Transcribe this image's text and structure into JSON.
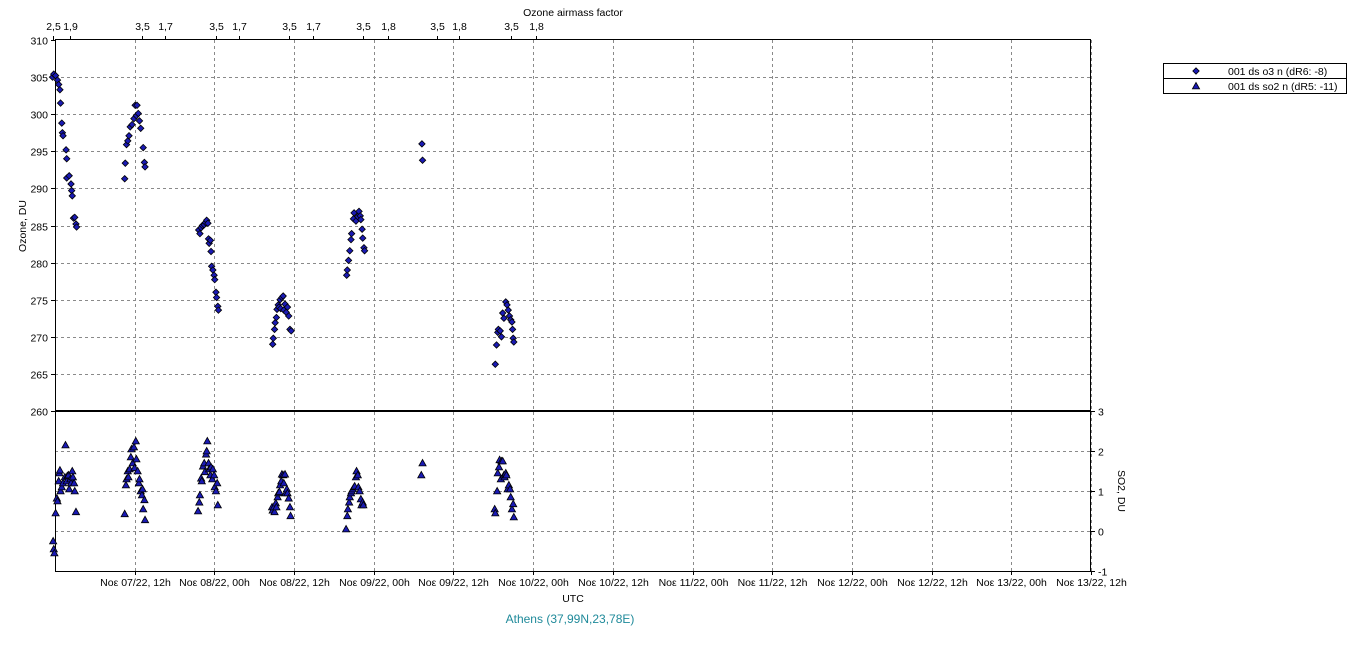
{
  "chart_data": {
    "type": "scatter",
    "location": "Athens (37,99N,23,78E)",
    "x_axis": {
      "label": "UTC",
      "min_hours": 0,
      "max_hours": 168,
      "tick_labels": [
        "Νοε 07/22, 12h",
        "Νοε 08/22, 00h",
        "Νοε 08/22, 12h",
        "Νοε 09/22, 00h",
        "Νοε 09/22, 12h",
        "Νοε 10/22, 00h",
        "Νοε 10/22, 12h",
        "Νοε 11/22, 00h",
        "Νοε 11/22, 12h",
        "Νοε 12/22, 00h",
        "Νοε 12/22, 12h",
        "Νοε 13/22, 00h",
        "Νοε 13/22, 12h"
      ]
    },
    "top_axis": {
      "label": "Ozone airmass factor",
      "tick_labels": [
        {
          "t": -0.3,
          "label": "2,5"
        },
        {
          "t": 2.4,
          "label": "1,9"
        },
        {
          "t": 14.1,
          "label": "3,5"
        },
        {
          "t": 17.9,
          "label": "1,7"
        },
        {
          "t": 26.1,
          "label": "3,5"
        },
        {
          "t": 29.9,
          "label": "1,7"
        },
        {
          "t": 38.0,
          "label": "3,5"
        },
        {
          "t": 41.8,
          "label": "1,7"
        },
        {
          "t": 50.0,
          "label": "3,5"
        },
        {
          "t": 54.0,
          "label": "1,8"
        },
        {
          "t": 62.0,
          "label": "3,5"
        },
        {
          "t": 65.5,
          "label": "1,8"
        },
        {
          "t": 74.0,
          "label": "3,5"
        },
        {
          "t": 78.0,
          "label": "1,8"
        }
      ]
    },
    "ozone_axis": {
      "label": "Ozone, DU",
      "min": 260,
      "max": 310,
      "ticks": [
        260,
        265,
        270,
        275,
        280,
        285,
        290,
        295,
        300,
        305,
        310
      ]
    },
    "so2_axis": {
      "label": "SO2, DU",
      "min": -1,
      "max": 3,
      "ticks": [
        -1,
        0,
        1,
        2,
        3
      ]
    },
    "grid": true,
    "legend_position": "top-right, outside plot",
    "series": [
      {
        "name": "001 ds o3  n (dR6: -8)",
        "marker": "diamond",
        "color": "#1a1ab4",
        "axis": "ozone",
        "points": [
          [
            -0.4,
            305.0
          ],
          [
            -0.2,
            305.4
          ],
          [
            0.1,
            305.2
          ],
          [
            0.4,
            304.6
          ],
          [
            0.6,
            304.0
          ],
          [
            0.8,
            303.3
          ],
          [
            0.9,
            301.5
          ],
          [
            1.1,
            298.8
          ],
          [
            1.2,
            297.5
          ],
          [
            1.3,
            297.1
          ],
          [
            1.8,
            295.2
          ],
          [
            1.9,
            294.0
          ],
          [
            1.9,
            291.4
          ],
          [
            2.3,
            291.7
          ],
          [
            2.6,
            290.6
          ],
          [
            2.7,
            289.7
          ],
          [
            2.8,
            289.0
          ],
          [
            3.0,
            286.0
          ],
          [
            3.2,
            286.1
          ],
          [
            3.4,
            285.2
          ],
          [
            3.5,
            284.8
          ],
          [
            11.3,
            291.3
          ],
          [
            11.4,
            293.4
          ],
          [
            11.6,
            295.9
          ],
          [
            11.8,
            296.4
          ],
          [
            12.0,
            297.1
          ],
          [
            12.2,
            298.3
          ],
          [
            12.5,
            298.6
          ],
          [
            12.8,
            299.4
          ],
          [
            13.0,
            301.2
          ],
          [
            13.2,
            299.8
          ],
          [
            13.3,
            301.2
          ],
          [
            13.5,
            300.1
          ],
          [
            13.7,
            299.1
          ],
          [
            13.9,
            298.1
          ],
          [
            14.3,
            295.5
          ],
          [
            14.5,
            293.5
          ],
          [
            14.6,
            292.9
          ],
          [
            23.3,
            284.4
          ],
          [
            23.5,
            283.9
          ],
          [
            23.7,
            284.7
          ],
          [
            23.9,
            285.0
          ],
          [
            24.2,
            285.1
          ],
          [
            24.4,
            285.4
          ],
          [
            24.6,
            285.7
          ],
          [
            24.8,
            285.3
          ],
          [
            24.9,
            283.2
          ],
          [
            25.0,
            282.6
          ],
          [
            25.2,
            283.0
          ],
          [
            25.3,
            281.5
          ],
          [
            25.4,
            279.5
          ],
          [
            25.6,
            279.0
          ],
          [
            25.8,
            278.3
          ],
          [
            25.9,
            277.7
          ],
          [
            26.1,
            276.0
          ],
          [
            26.2,
            275.3
          ],
          [
            26.4,
            274.1
          ],
          [
            26.5,
            273.6
          ],
          [
            35.3,
            269.0
          ],
          [
            35.4,
            269.8
          ],
          [
            35.6,
            271.0
          ],
          [
            35.7,
            271.9
          ],
          [
            35.9,
            272.6
          ],
          [
            36.0,
            273.7
          ],
          [
            36.2,
            274.3
          ],
          [
            36.3,
            274.0
          ],
          [
            36.5,
            275.0
          ],
          [
            36.6,
            273.8
          ],
          [
            36.8,
            275.3
          ],
          [
            37.0,
            275.5
          ],
          [
            37.1,
            273.6
          ],
          [
            37.3,
            274.4
          ],
          [
            37.5,
            273.3
          ],
          [
            37.7,
            274.0
          ],
          [
            37.9,
            272.8
          ],
          [
            38.1,
            271.0
          ],
          [
            38.3,
            270.8
          ],
          [
            47.3,
            278.3
          ],
          [
            47.4,
            279.0
          ],
          [
            47.6,
            280.3
          ],
          [
            47.8,
            281.6
          ],
          [
            48.0,
            283.1
          ],
          [
            48.1,
            283.9
          ],
          [
            48.4,
            285.9
          ],
          [
            48.5,
            286.7
          ],
          [
            48.8,
            285.6
          ],
          [
            49.1,
            286.2
          ],
          [
            49.3,
            286.9
          ],
          [
            49.5,
            286.3
          ],
          [
            49.6,
            285.8
          ],
          [
            49.8,
            284.5
          ],
          [
            49.9,
            283.3
          ],
          [
            50.1,
            282.0
          ],
          [
            50.2,
            281.6
          ],
          [
            59.5,
            296.0
          ],
          [
            59.6,
            293.8
          ],
          [
            71.4,
            266.3
          ],
          [
            71.6,
            268.9
          ],
          [
            71.8,
            270.6
          ],
          [
            71.9,
            271.0
          ],
          [
            72.2,
            270.8
          ],
          [
            72.4,
            270.0
          ],
          [
            72.6,
            273.2
          ],
          [
            72.8,
            272.5
          ],
          [
            73.1,
            274.7
          ],
          [
            73.3,
            274.3
          ],
          [
            73.5,
            273.6
          ],
          [
            73.7,
            272.8
          ],
          [
            73.9,
            272.3
          ],
          [
            74.1,
            272.0
          ],
          [
            74.2,
            271.0
          ],
          [
            74.3,
            269.8
          ],
          [
            74.4,
            269.3
          ]
        ]
      },
      {
        "name": "001 ds so2 n (dR5: -11)",
        "marker": "triangle",
        "color": "#1a1ab4",
        "axis": "so2",
        "points": [
          [
            -0.3,
            -0.25
          ],
          [
            -0.2,
            -0.45
          ],
          [
            -0.1,
            -0.55
          ],
          [
            0.1,
            0.45
          ],
          [
            0.3,
            0.82
          ],
          [
            0.4,
            0.75
          ],
          [
            0.6,
            1.25
          ],
          [
            0.7,
            1.45
          ],
          [
            0.8,
            1.52
          ],
          [
            0.9,
            1.0
          ],
          [
            1.1,
            1.1
          ],
          [
            1.3,
            1.2
          ],
          [
            1.6,
            1.35
          ],
          [
            1.7,
            2.15
          ],
          [
            1.9,
            1.25
          ],
          [
            2.0,
            1.38
          ],
          [
            2.2,
            1.4
          ],
          [
            2.3,
            1.05
          ],
          [
            2.5,
            1.3
          ],
          [
            2.6,
            1.2
          ],
          [
            2.8,
            1.5
          ],
          [
            2.9,
            1.35
          ],
          [
            3.1,
            1.2
          ],
          [
            3.2,
            1.0
          ],
          [
            3.4,
            0.48
          ],
          [
            11.3,
            0.43
          ],
          [
            11.5,
            1.15
          ],
          [
            11.6,
            1.3
          ],
          [
            11.8,
            1.5
          ],
          [
            11.9,
            1.35
          ],
          [
            12.1,
            1.55
          ],
          [
            12.3,
            1.85
          ],
          [
            12.4,
            2.05
          ],
          [
            12.6,
            1.7
          ],
          [
            12.8,
            2.1
          ],
          [
            12.9,
            1.58
          ],
          [
            13.1,
            2.25
          ],
          [
            13.2,
            1.8
          ],
          [
            13.4,
            1.5
          ],
          [
            13.6,
            1.2
          ],
          [
            13.7,
            1.3
          ],
          [
            13.9,
            1.0
          ],
          [
            14.1,
            0.9
          ],
          [
            14.2,
            1.05
          ],
          [
            14.3,
            0.55
          ],
          [
            14.5,
            0.78
          ],
          [
            14.6,
            0.28
          ],
          [
            23.2,
            0.5
          ],
          [
            23.4,
            0.72
          ],
          [
            23.5,
            0.9
          ],
          [
            23.7,
            1.32
          ],
          [
            23.8,
            1.25
          ],
          [
            24.0,
            1.62
          ],
          [
            24.2,
            1.7
          ],
          [
            24.3,
            1.48
          ],
          [
            24.5,
            1.92
          ],
          [
            24.6,
            2.0
          ],
          [
            24.7,
            2.25
          ],
          [
            24.9,
            1.7
          ],
          [
            25.0,
            1.55
          ],
          [
            25.2,
            1.4
          ],
          [
            25.3,
            1.6
          ],
          [
            25.5,
            1.3
          ],
          [
            25.6,
            1.55
          ],
          [
            25.8,
            1.4
          ],
          [
            25.9,
            1.1
          ],
          [
            26.1,
            1.0
          ],
          [
            26.3,
            1.2
          ],
          [
            26.4,
            0.65
          ],
          [
            35.2,
            0.6
          ],
          [
            35.3,
            0.52
          ],
          [
            35.5,
            0.6
          ],
          [
            35.6,
            0.48
          ],
          [
            35.8,
            0.7
          ],
          [
            35.9,
            0.6
          ],
          [
            36.1,
            0.85
          ],
          [
            36.2,
            0.95
          ],
          [
            36.4,
            0.98
          ],
          [
            36.5,
            1.15
          ],
          [
            36.7,
            1.25
          ],
          [
            36.8,
            1.42
          ],
          [
            37.0,
            1.4
          ],
          [
            37.1,
            1.2
          ],
          [
            37.3,
            1.42
          ],
          [
            37.4,
            0.95
          ],
          [
            37.6,
            1.05
          ],
          [
            37.7,
            0.95
          ],
          [
            37.9,
            0.82
          ],
          [
            38.1,
            0.6
          ],
          [
            38.2,
            0.38
          ],
          [
            47.2,
            0.05
          ],
          [
            47.4,
            0.38
          ],
          [
            47.5,
            0.55
          ],
          [
            47.7,
            0.72
          ],
          [
            47.8,
            0.85
          ],
          [
            48.0,
            0.95
          ],
          [
            48.1,
            1.0
          ],
          [
            48.3,
            1.05
          ],
          [
            48.5,
            1.1
          ],
          [
            48.6,
            1.12
          ],
          [
            48.8,
            1.35
          ],
          [
            48.9,
            1.5
          ],
          [
            49.1,
            1.4
          ],
          [
            49.2,
            1.1
          ],
          [
            49.4,
            1.0
          ],
          [
            49.6,
            0.8
          ],
          [
            49.7,
            0.65
          ],
          [
            49.9,
            0.72
          ],
          [
            50.0,
            0.65
          ],
          [
            59.4,
            1.4
          ],
          [
            59.6,
            1.7
          ],
          [
            71.3,
            0.55
          ],
          [
            71.4,
            0.45
          ],
          [
            71.7,
            1.0
          ],
          [
            71.8,
            1.45
          ],
          [
            72.0,
            1.6
          ],
          [
            72.1,
            1.78
          ],
          [
            72.3,
            1.3
          ],
          [
            72.4,
            1.75
          ],
          [
            72.6,
            1.75
          ],
          [
            72.8,
            1.4
          ],
          [
            72.9,
            1.35
          ],
          [
            73.1,
            1.45
          ],
          [
            73.2,
            1.4
          ],
          [
            73.4,
            1.05
          ],
          [
            73.6,
            1.15
          ],
          [
            73.8,
            1.05
          ],
          [
            73.9,
            0.85
          ],
          [
            74.1,
            0.55
          ],
          [
            74.3,
            0.68
          ],
          [
            74.4,
            0.35
          ]
        ]
      }
    ]
  }
}
